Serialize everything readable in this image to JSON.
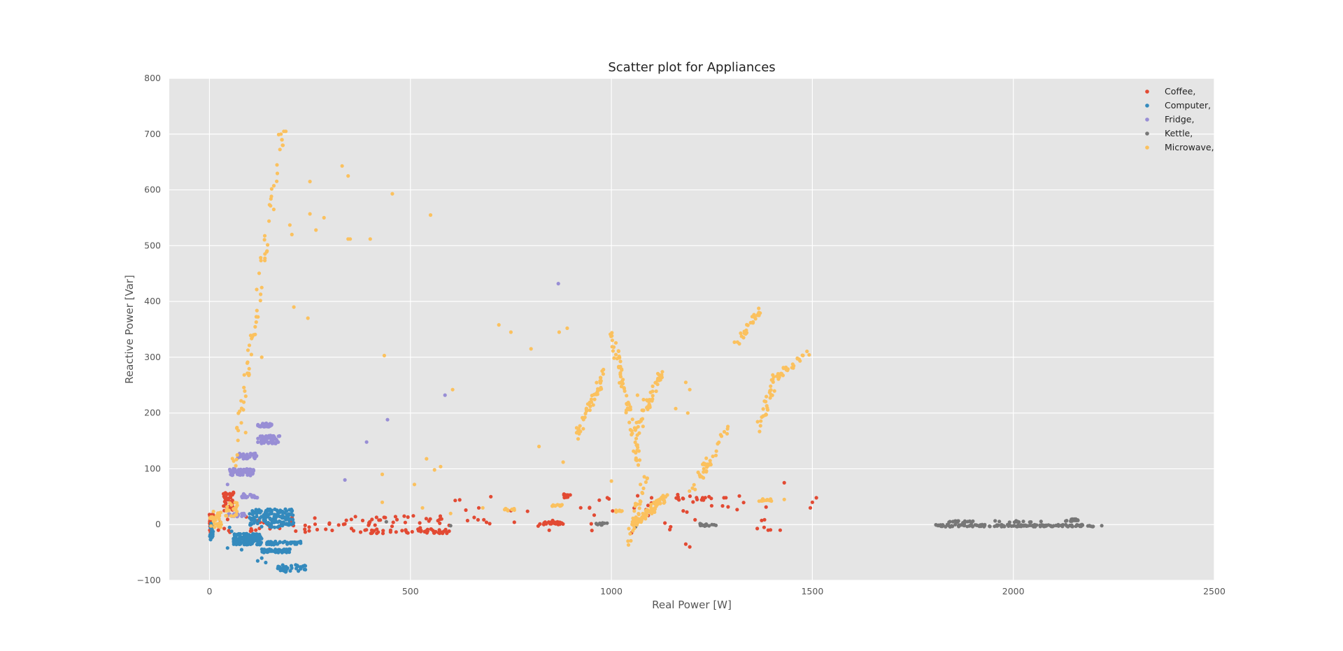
{
  "chart_data": {
    "type": "scatter",
    "title": "Scatter plot for Appliances",
    "xlabel": "Real Power [W]",
    "ylabel": "Reactive Power [Var]",
    "xlim": [
      -100,
      2500
    ],
    "ylim": [
      -100,
      800
    ],
    "xticks": [
      0,
      500,
      1000,
      1500,
      2000,
      2500
    ],
    "yticks": [
      -100,
      0,
      100,
      200,
      300,
      400,
      500,
      600,
      700,
      800
    ],
    "grid": true,
    "legend_position": "top-right",
    "series": [
      {
        "name": "Coffee,",
        "color": "#E24A33",
        "clusters": [
          {
            "x": [
              0,
              10
            ],
            "y": [
              -5,
              20
            ],
            "n": 45
          },
          {
            "x": [
              35,
              60
            ],
            "y": [
              25,
              58
            ],
            "n": 40
          },
          {
            "x": [
              0,
              600
            ],
            "y": [
              -14,
              16
            ],
            "n": 90
          },
          {
            "x": [
              390,
              600
            ],
            "y": [
              -16,
              -8
            ],
            "n": 40
          },
          {
            "x": [
              820,
              880
            ],
            "y": [
              0,
              5
            ],
            "n": 35
          },
          {
            "x": [
              880,
              900
            ],
            "y": [
              48,
              56
            ],
            "n": 14
          },
          {
            "x": [
              600,
              1400
            ],
            "y": [
              -12,
              55
            ],
            "n": 55
          },
          {
            "x": [
              1150,
              1250
            ],
            "y": [
              44,
              50
            ],
            "n": 14
          }
        ],
        "points": [
          [
            1430,
            75
          ],
          [
            1495,
            30
          ],
          [
            1510,
            48
          ],
          [
            1500,
            40
          ],
          [
            1195,
            -40
          ],
          [
            1185,
            -35
          ],
          [
            1390,
            -10
          ],
          [
            1380,
            -5
          ],
          [
            1280,
            48
          ],
          [
            1420,
            -10
          ],
          [
            990,
            48
          ],
          [
            750,
            25
          ],
          [
            700,
            50
          ],
          [
            670,
            30
          ],
          [
            1050,
            -15
          ],
          [
            1100,
            48
          ]
        ]
      },
      {
        "name": "Computer,",
        "color": "#348ABD",
        "clusters": [
          {
            "x": [
              60,
              130
            ],
            "y": [
              -36,
              -16
            ],
            "n": 170
          },
          {
            "x": [
              100,
              210
            ],
            "y": [
              -5,
              28
            ],
            "n": 140
          },
          {
            "x": [
              130,
              200
            ],
            "y": [
              -50,
              -44
            ],
            "n": 55
          },
          {
            "x": [
              140,
              230
            ],
            "y": [
              -36,
              -30
            ],
            "n": 45
          },
          {
            "x": [
              170,
              240
            ],
            "y": [
              -85,
              -72
            ],
            "n": 35
          },
          {
            "x": [
              0,
              10
            ],
            "y": [
              -28,
              3
            ],
            "n": 30
          }
        ],
        "points": [
          [
            120,
            -65
          ],
          [
            130,
            -60
          ],
          [
            140,
            -68
          ],
          [
            45,
            -42
          ],
          [
            60,
            -25
          ],
          [
            75,
            -20
          ],
          [
            55,
            -12
          ],
          [
            50,
            -5
          ],
          [
            80,
            -45
          ]
        ]
      },
      {
        "name": "Fridge,",
        "color": "#988ED5",
        "clusters": [
          {
            "x": [
              50,
              110
            ],
            "y": [
              88,
              100
            ],
            "n": 80
          },
          {
            "x": [
              70,
              120
            ],
            "y": [
              118,
              128
            ],
            "n": 35
          },
          {
            "x": [
              120,
              175
            ],
            "y": [
              145,
              160
            ],
            "n": 55
          },
          {
            "x": [
              120,
              155
            ],
            "y": [
              175,
              182
            ],
            "n": 30
          },
          {
            "x": [
              80,
              120
            ],
            "y": [
              48,
              54
            ],
            "n": 25
          },
          {
            "x": [
              40,
              90
            ],
            "y": [
              14,
              20
            ],
            "n": 25
          }
        ],
        "points": [
          [
            868,
            432
          ],
          [
            586,
            232
          ],
          [
            443,
            188
          ],
          [
            391,
            148
          ],
          [
            337,
            80
          ],
          [
            45,
            72
          ],
          [
            60,
            100
          ],
          [
            85,
            55
          ]
        ]
      },
      {
        "name": "Kettle,",
        "color": "#777777",
        "clusters": [
          {
            "x": [
              1805,
              2200
            ],
            "y": [
              -4,
              0
            ],
            "n": 150
          },
          {
            "x": [
              1840,
              1900
            ],
            "y": [
              3,
              7
            ],
            "n": 18
          },
          {
            "x": [
              1950,
              2070
            ],
            "y": [
              4,
              7
            ],
            "n": 14
          },
          {
            "x": [
              2130,
              2170
            ],
            "y": [
              6,
              10
            ],
            "n": 16
          },
          {
            "x": [
              960,
              1000
            ],
            "y": [
              -1,
              3
            ],
            "n": 12
          },
          {
            "x": [
              1220,
              1260
            ],
            "y": [
              -3,
              2
            ],
            "n": 14
          }
        ],
        "points": [
          [
            2220,
            -2
          ],
          [
            440,
            5
          ],
          [
            600,
            -2
          ],
          [
            1060,
            -4
          ]
        ]
      },
      {
        "name": "Microwave,",
        "color": "#FBC15E",
        "strokes": [
          {
            "x0": 60,
            "y0": 100,
            "x1": 180,
            "y1": 700,
            "n": 70
          },
          {
            "x0": 915,
            "y0": 160,
            "x1": 985,
            "y1": 275,
            "n": 50
          },
          {
            "x0": 1000,
            "y0": 350,
            "x1": 1070,
            "y1": 110,
            "n": 70
          },
          {
            "x0": 1060,
            "y0": 160,
            "x1": 1125,
            "y1": 275,
            "n": 50
          },
          {
            "x0": 1050,
            "y0": 0,
            "x1": 1140,
            "y1": 50,
            "n": 90
          },
          {
            "x0": 1200,
            "y0": 60,
            "x1": 1295,
            "y1": 185,
            "n": 35
          },
          {
            "x0": 1310,
            "y0": 325,
            "x1": 1375,
            "y1": 385,
            "n": 30
          },
          {
            "x0": 1365,
            "y0": 170,
            "x1": 1410,
            "y1": 265,
            "n": 30
          },
          {
            "x0": 1410,
            "y0": 265,
            "x1": 1495,
            "y1": 310,
            "n": 30
          },
          {
            "x0": 1040,
            "y0": -40,
            "x1": 1090,
            "y1": 100,
            "n": 25
          }
        ],
        "clusters": [
          {
            "x": [
              0,
              30
            ],
            "y": [
              -5,
              25
            ],
            "n": 35
          },
          {
            "x": [
              40,
              70
            ],
            "y": [
              15,
              40
            ],
            "n": 25
          },
          {
            "x": [
              1340,
              1400
            ],
            "y": [
              42,
              46
            ],
            "n": 14
          },
          {
            "x": [
              850,
              880
            ],
            "y": [
              33,
              36
            ],
            "n": 12
          },
          {
            "x": [
              720,
              760
            ],
            "y": [
              25,
              30
            ],
            "n": 10
          },
          {
            "x": [
              1000,
              1040
            ],
            "y": [
              22,
              26
            ],
            "n": 8
          }
        ],
        "points": [
          [
            180,
            690
          ],
          [
            178,
            700
          ],
          [
            185,
            705
          ],
          [
            182,
            680
          ],
          [
            190,
            705
          ],
          [
            330,
            643
          ],
          [
            345,
            625
          ],
          [
            250,
            615
          ],
          [
            455,
            593
          ],
          [
            550,
            555
          ],
          [
            250,
            557
          ],
          [
            285,
            550
          ],
          [
            265,
            528
          ],
          [
            345,
            512
          ],
          [
            400,
            512
          ],
          [
            350,
            512
          ],
          [
            205,
            520
          ],
          [
            200,
            537
          ],
          [
            160,
            565
          ],
          [
            435,
            303
          ],
          [
            750,
            345
          ],
          [
            720,
            358
          ],
          [
            800,
            315
          ],
          [
            870,
            345
          ],
          [
            890,
            352
          ],
          [
            1185,
            255
          ],
          [
            1195,
            242
          ],
          [
            1190,
            200
          ],
          [
            1160,
            208
          ],
          [
            820,
            140
          ],
          [
            880,
            112
          ],
          [
            430,
            90
          ],
          [
            540,
            118
          ],
          [
            510,
            72
          ],
          [
            560,
            98
          ],
          [
            605,
            242
          ],
          [
            575,
            104
          ],
          [
            1000,
            78
          ],
          [
            1065,
            232
          ],
          [
            1080,
            224
          ],
          [
            1230,
            100
          ],
          [
            1260,
            124
          ],
          [
            245,
            370
          ],
          [
            210,
            390
          ],
          [
            130,
            300
          ],
          [
            90,
            165
          ],
          [
            430,
            40
          ],
          [
            600,
            20
          ],
          [
            680,
            30
          ],
          [
            530,
            30
          ],
          [
            1430,
            45
          ]
        ]
      }
    ]
  }
}
